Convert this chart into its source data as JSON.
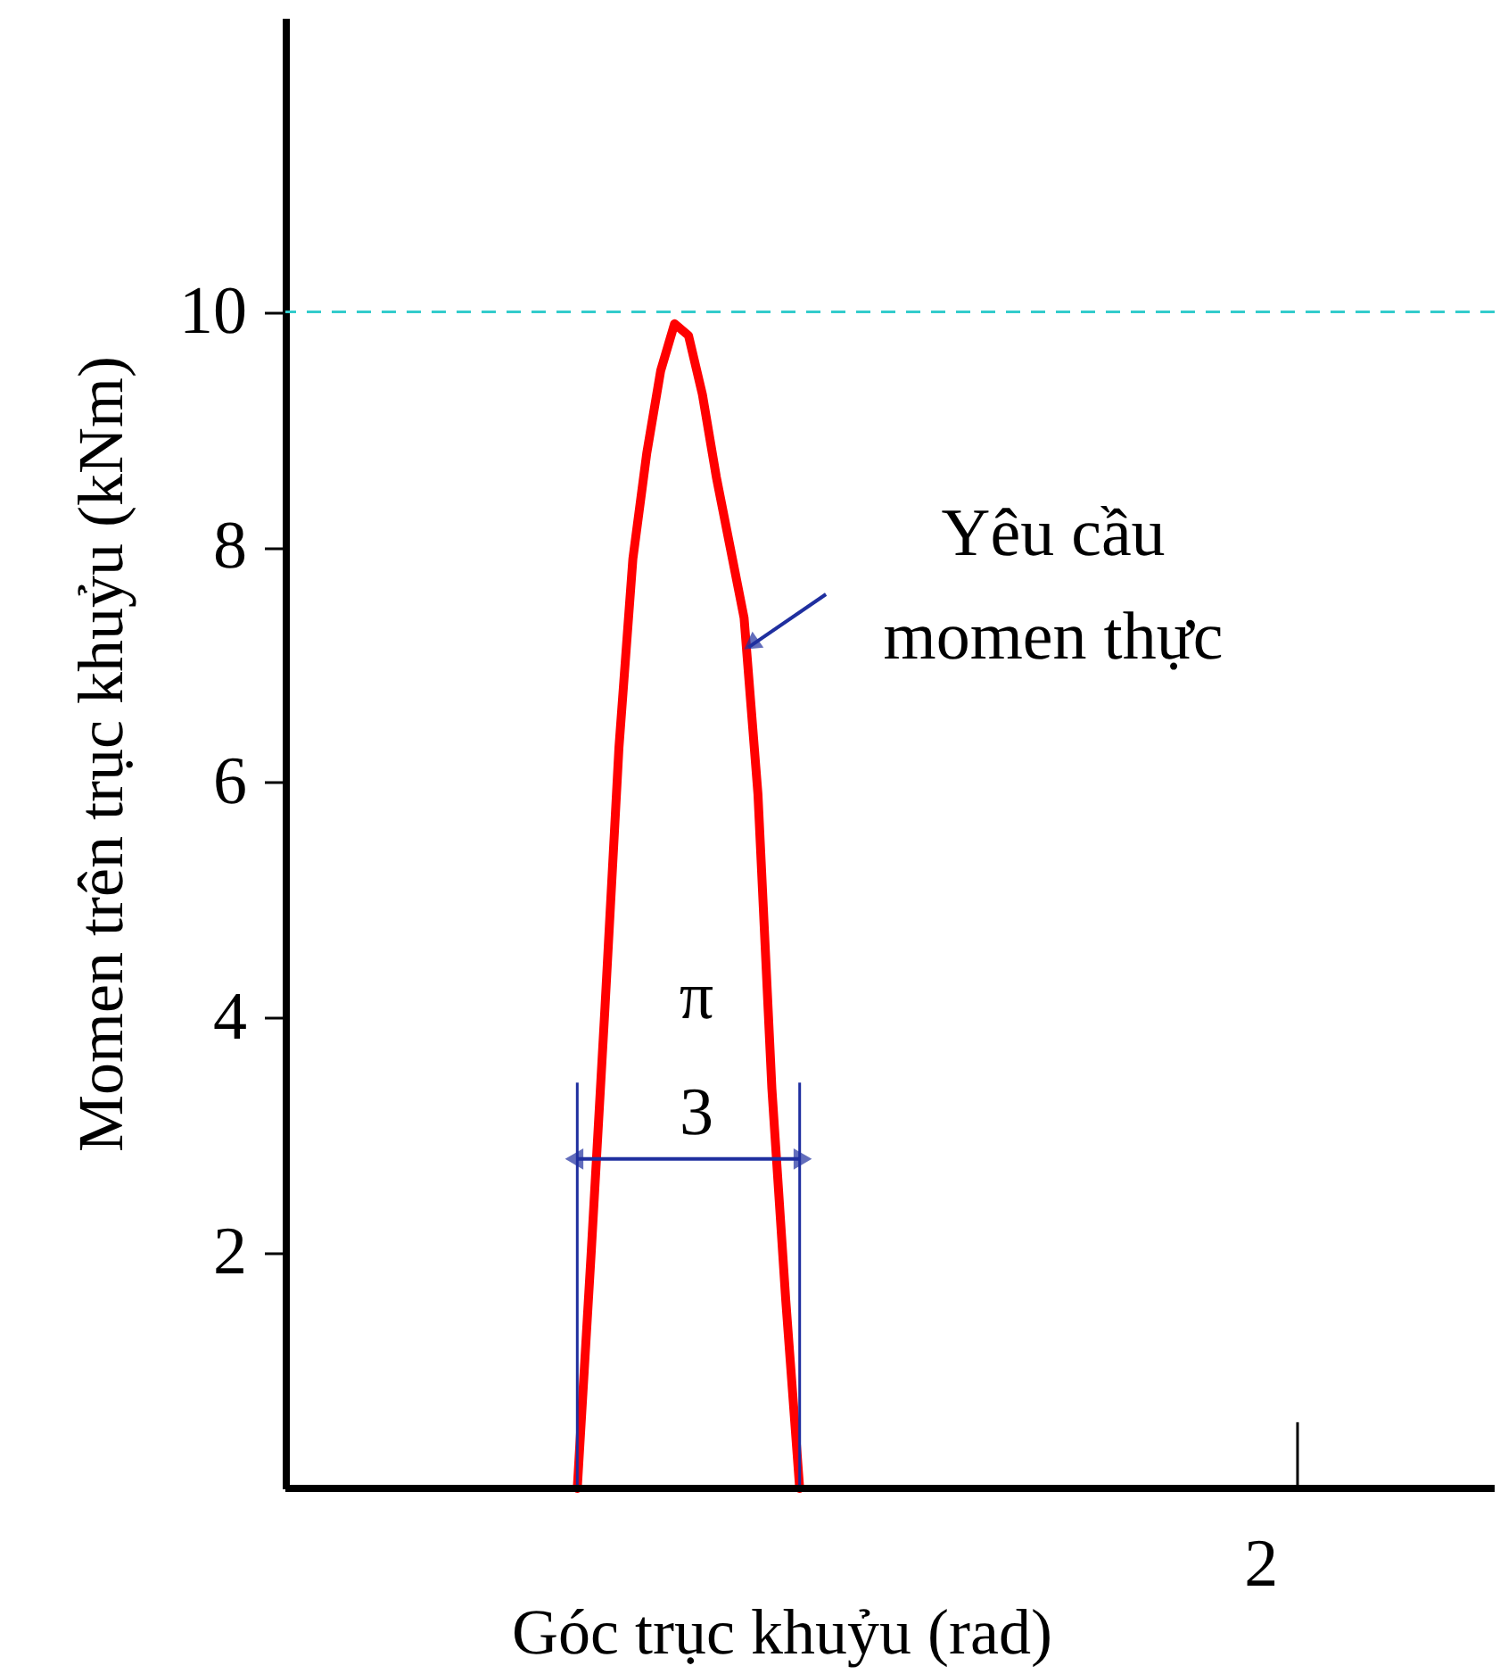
{
  "chart_data": {
    "type": "line",
    "xlabel": "Góc trục khuỷu (rad)",
    "ylabel": "Momen trên trục khuỷu  (kNm)",
    "categories": [
      null,
      null,
      null,
      null,
      null,
      null,
      null,
      null,
      null,
      null,
      null,
      null,
      null,
      null,
      null,
      null,
      null,
      null,
      null,
      null,
      null,
      null,
      null,
      null,
      null,
      null,
      null,
      null,
      null,
      null,
      null,
      null,
      null,
      null,
      null,
      null,
      null,
      null,
      null,
      null,
      null,
      null,
      null,
      null,
      null,
      null,
      null,
      null,
      null,
      null,
      null,
      null,
      null,
      null,
      null,
      null,
      null,
      null,
      null,
      null,
      null,
      null,
      null,
      null,
      null,
      null,
      null,
      null,
      null,
      null,
      null,
      null,
      null,
      null,
      null,
      null,
      null,
      null,
      null,
      null,
      null,
      null,
      null,
      null,
      null,
      null,
      null,
      null
    ],
    "series": [
      {
        "color": "#ff0000",
        "values": [
          null,
          null,
          null,
          null,
          null,
          null,
          null,
          null,
          null,
          null,
          null,
          null,
          null,
          null,
          null,
          null,
          null,
          null,
          null,
          null,
          null,
          0,
          2.0,
          4.1,
          6.3,
          7.9,
          8.8,
          9.5,
          9.9,
          9.8,
          9.3,
          8.6,
          8.0,
          7.4,
          5.9,
          3.4,
          1.6,
          0,
          null,
          null,
          null,
          null,
          null,
          null,
          null,
          null,
          null,
          null,
          null,
          null,
          null,
          null,
          null,
          null,
          null,
          null,
          null,
          null,
          null,
          null,
          null,
          null,
          null,
          null,
          null,
          null,
          null,
          null,
          null,
          null,
          null,
          null,
          null,
          null,
          null,
          null,
          null,
          null,
          null,
          null,
          null,
          null,
          null,
          null,
          null,
          null,
          null,
          null
        ]
      }
    ],
    "ylim": [
      0,
      12.5
    ],
    "yticks": [
      2,
      4,
      6,
      8,
      10
    ],
    "ref_lines": [
      {
        "axis": "y",
        "value": 10,
        "label": null,
        "color": "#33cccc",
        "line_style": "dashed"
      }
    ],
    "annotations": [
      "Yêu cầu momen thực",
      "π",
      "3",
      "2"
    ],
    "grid": false,
    "marker": "none",
    "line_style": "solid"
  }
}
